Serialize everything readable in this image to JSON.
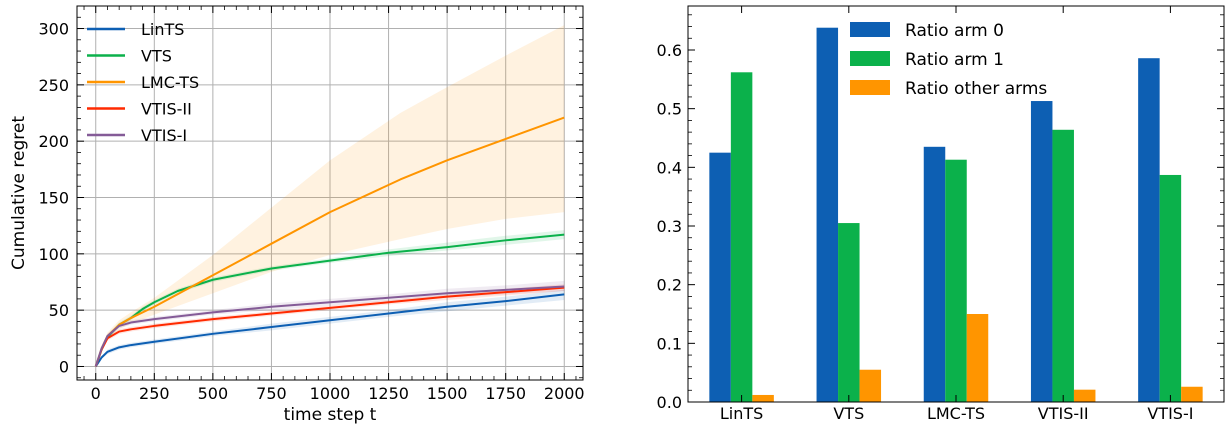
{
  "chart_data": [
    {
      "type": "line",
      "xlabel": "time step t",
      "ylabel": "Cumulative regret",
      "xlim": [
        -80,
        2080
      ],
      "ylim": [
        -12,
        320
      ],
      "xticks": [
        0,
        250,
        500,
        750,
        1000,
        1250,
        1500,
        1750,
        2000
      ],
      "yticks": [
        0,
        50,
        100,
        150,
        200,
        250,
        300
      ],
      "grid": true,
      "legend_position": "upper-left",
      "series": [
        {
          "name": "LinTS",
          "color": "#0d5fb3",
          "x": [
            0,
            25,
            50,
            100,
            150,
            250,
            500,
            750,
            1000,
            1250,
            1500,
            1750,
            2000
          ],
          "y": [
            0,
            8,
            13,
            17,
            19,
            22,
            29,
            35,
            41,
            47,
            53,
            58,
            64
          ],
          "lower": [
            0,
            7,
            11,
            15,
            17,
            20,
            27,
            32,
            38,
            44,
            49,
            54,
            59
          ],
          "upper": [
            0,
            9,
            15,
            19,
            21,
            24,
            31,
            38,
            44,
            50,
            57,
            62,
            68
          ]
        },
        {
          "name": "VTS",
          "color": "#0bb14b",
          "x": [
            0,
            25,
            50,
            100,
            150,
            200,
            250,
            350,
            500,
            750,
            1000,
            1250,
            1500,
            1750,
            2000
          ],
          "y": [
            0,
            15,
            26,
            37,
            43,
            51,
            57,
            67,
            77,
            87,
            94,
            101,
            106,
            112,
            117
          ],
          "lower": [
            0,
            14,
            24,
            35,
            41,
            49,
            55,
            65,
            75,
            85,
            92,
            98,
            103,
            108,
            113
          ],
          "upper": [
            0,
            16,
            28,
            39,
            45,
            53,
            59,
            69,
            79,
            89,
            96,
            104,
            110,
            116,
            121
          ]
        },
        {
          "name": "LMC-TS",
          "color": "#ff9500",
          "x": [
            0,
            25,
            50,
            100,
            150,
            250,
            500,
            750,
            1000,
            1300,
            1500,
            1750,
            2000
          ],
          "y": [
            0,
            16,
            27,
            37,
            43,
            53,
            81,
            109,
            137,
            166,
            183,
            202,
            221
          ],
          "lower": [
            0,
            14,
            24,
            33,
            38,
            46,
            65,
            84,
            99,
            113,
            122,
            131,
            137
          ],
          "upper": [
            0,
            18,
            30,
            41,
            48,
            61,
            99,
            141,
            183,
            225,
            248,
            276,
            303
          ]
        },
        {
          "name": "VTIS-II",
          "color": "#ff2a00",
          "x": [
            0,
            25,
            50,
            100,
            150,
            250,
            500,
            750,
            1000,
            1250,
            1500,
            1750,
            2000
          ],
          "y": [
            0,
            15,
            25,
            31,
            33,
            36,
            42,
            47,
            52,
            57,
            62,
            66,
            70
          ],
          "lower": [
            0,
            13,
            23,
            29,
            31,
            34,
            40,
            45,
            50,
            55,
            59,
            63,
            67
          ],
          "upper": [
            0,
            17,
            27,
            33,
            35,
            38,
            44,
            49,
            54,
            59,
            64,
            69,
            73
          ]
        },
        {
          "name": "VTIS-I",
          "color": "#845b97",
          "x": [
            0,
            25,
            50,
            100,
            150,
            250,
            500,
            750,
            1000,
            1250,
            1500,
            1750,
            2000
          ],
          "y": [
            0,
            16,
            27,
            36,
            39,
            42,
            48,
            53,
            57,
            61,
            65,
            68,
            71
          ],
          "lower": [
            0,
            14,
            25,
            34,
            37,
            40,
            46,
            50,
            54,
            58,
            61,
            64,
            67
          ],
          "upper": [
            0,
            18,
            29,
            38,
            41,
            44,
            50,
            56,
            60,
            64,
            69,
            72,
            76
          ]
        }
      ]
    },
    {
      "type": "bar",
      "categories": [
        "LinTS",
        "VTS",
        "LMC-TS",
        "VTIS-II",
        "VTIS-I"
      ],
      "ylim": [
        0,
        0.675
      ],
      "yticks": [
        "0.0",
        "0.1",
        "0.2",
        "0.3",
        "0.4",
        "0.5",
        "0.6"
      ],
      "grid": false,
      "legend_position": "top-center",
      "series": [
        {
          "name": "Ratio arm 0",
          "color": "#0d5fb3",
          "values": [
            0.425,
            0.638,
            0.435,
            0.513,
            0.586
          ]
        },
        {
          "name": "Ratio arm 1",
          "color": "#0bb14b",
          "values": [
            0.562,
            0.305,
            0.413,
            0.464,
            0.387
          ]
        },
        {
          "name": "Ratio other arms",
          "color": "#ff9500",
          "values": [
            0.012,
            0.055,
            0.15,
            0.021,
            0.026
          ]
        }
      ]
    }
  ]
}
